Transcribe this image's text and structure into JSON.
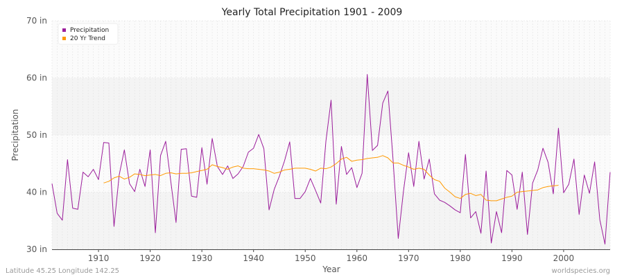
{
  "chart_data": {
    "type": "line",
    "title": "Yearly Total Precipitation 1901 - 2009",
    "xlabel": "Year",
    "ylabel": "Precipitation",
    "xlim": [
      1901,
      2009
    ],
    "ylim": [
      30,
      70
    ],
    "x_ticks": [
      {
        "value": 1910,
        "label": "1910"
      },
      {
        "value": 1920,
        "label": "1920"
      },
      {
        "value": 1930,
        "label": "1930"
      },
      {
        "value": 1940,
        "label": "1940"
      },
      {
        "value": 1950,
        "label": "1950"
      },
      {
        "value": 1960,
        "label": "1960"
      },
      {
        "value": 1970,
        "label": "1970"
      },
      {
        "value": 1980,
        "label": "1980"
      },
      {
        "value": 1990,
        "label": "1990"
      },
      {
        "value": 2000,
        "label": "2000"
      }
    ],
    "y_ticks": [
      {
        "value": 30,
        "label": "30 in"
      },
      {
        "value": 40,
        "label": "40 in"
      },
      {
        "value": 50,
        "label": "50 in"
      },
      {
        "value": 60,
        "label": "60 in"
      },
      {
        "value": 70,
        "label": "70 in"
      }
    ],
    "legend_position": "top-left",
    "grid": true,
    "series": [
      {
        "name": "Precipitation",
        "color": "#9b1d9b",
        "x": [
          1901,
          1902,
          1903,
          1904,
          1905,
          1906,
          1907,
          1908,
          1909,
          1910,
          1911,
          1912,
          1913,
          1914,
          1915,
          1916,
          1917,
          1918,
          1919,
          1920,
          1921,
          1922,
          1923,
          1924,
          1925,
          1926,
          1927,
          1928,
          1929,
          1930,
          1931,
          1932,
          1933,
          1934,
          1935,
          1936,
          1937,
          1938,
          1939,
          1940,
          1941,
          1942,
          1943,
          1944,
          1945,
          1946,
          1947,
          1948,
          1949,
          1950,
          1951,
          1952,
          1953,
          1954,
          1955,
          1956,
          1957,
          1958,
          1959,
          1960,
          1961,
          1962,
          1963,
          1964,
          1965,
          1966,
          1967,
          1968,
          1969,
          1970,
          1971,
          1972,
          1973,
          1974,
          1975,
          1976,
          1977,
          1978,
          1979,
          1980,
          1981,
          1982,
          1983,
          1984,
          1985,
          1986,
          1987,
          1988,
          1989,
          1990,
          1991,
          1992,
          1993,
          1994,
          1995,
          1996,
          1997,
          1998,
          1999,
          2000,
          2001,
          2002,
          2003,
          2004,
          2005,
          2006,
          2007,
          2008,
          2009
        ],
        "values": [
          41.5,
          36.3,
          35.1,
          45.7,
          37.2,
          37.0,
          43.5,
          42.7,
          44.0,
          42.2,
          48.7,
          48.6,
          34.0,
          43.0,
          47.4,
          41.5,
          40.1,
          44.0,
          41.0,
          47.4,
          32.9,
          46.4,
          48.9,
          41.8,
          34.7,
          47.5,
          47.6,
          39.3,
          39.1,
          47.8,
          41.4,
          49.4,
          44.5,
          43.1,
          44.6,
          42.4,
          43.2,
          44.5,
          47.0,
          47.7,
          50.1,
          47.6,
          36.9,
          40.5,
          42.8,
          45.5,
          48.8,
          38.9,
          38.9,
          40.1,
          42.4,
          40.3,
          38.1,
          48.9,
          56.1,
          37.9,
          48.0,
          43.1,
          44.3,
          40.8,
          43.3,
          60.6,
          47.3,
          48.2,
          55.6,
          57.7,
          45.6,
          31.9,
          40.1,
          46.9,
          41.0,
          48.9,
          42.3,
          45.8,
          39.7,
          38.6,
          38.2,
          37.6,
          36.9,
          36.4,
          46.6,
          35.5,
          36.6,
          32.8,
          43.7,
          31.1,
          36.6,
          32.9,
          43.8,
          43.0,
          37.0,
          43.5,
          32.6,
          41.6,
          43.9,
          47.7,
          45.2,
          39.7,
          51.2,
          39.9,
          41.4,
          45.8,
          36.1,
          43.0,
          39.8,
          45.3,
          35.2,
          30.9,
          43.5
        ]
      },
      {
        "name": "20 Yr Trend",
        "color": "#ff9900",
        "x": [
          1911,
          1912,
          1913,
          1914,
          1915,
          1916,
          1917,
          1918,
          1919,
          1920,
          1921,
          1922,
          1923,
          1924,
          1925,
          1926,
          1927,
          1928,
          1929,
          1930,
          1931,
          1932,
          1933,
          1934,
          1935,
          1936,
          1937,
          1938,
          1939,
          1940,
          1941,
          1942,
          1943,
          1944,
          1945,
          1946,
          1947,
          1948,
          1949,
          1950,
          1951,
          1952,
          1953,
          1954,
          1955,
          1956,
          1957,
          1958,
          1959,
          1960,
          1961,
          1962,
          1963,
          1964,
          1965,
          1966,
          1967,
          1968,
          1969,
          1970,
          1971,
          1972,
          1973,
          1974,
          1975,
          1976,
          1977,
          1978,
          1979,
          1980,
          1981,
          1982,
          1983,
          1984,
          1985,
          1986,
          1987,
          1988,
          1989,
          1990,
          1991,
          1992,
          1993,
          1994,
          1995,
          1996,
          1997,
          1998,
          1999
        ],
        "values": [
          41.6,
          41.9,
          42.5,
          42.8,
          42.3,
          42.6,
          43.2,
          43.1,
          42.9,
          43.0,
          43.1,
          42.9,
          43.3,
          43.4,
          43.2,
          43.3,
          43.3,
          43.4,
          43.6,
          43.8,
          44.0,
          44.8,
          44.5,
          44.3,
          44.0,
          44.4,
          44.6,
          44.2,
          44.1,
          44.1,
          44.0,
          43.9,
          43.7,
          43.3,
          43.5,
          43.9,
          44.0,
          44.2,
          44.2,
          44.2,
          44.0,
          43.7,
          44.2,
          44.1,
          44.4,
          45.0,
          45.8,
          46.1,
          45.4,
          45.6,
          45.7,
          45.9,
          46.0,
          46.1,
          46.4,
          46.0,
          45.1,
          45.1,
          44.7,
          44.4,
          44.0,
          44.2,
          44.0,
          43.0,
          42.2,
          41.9,
          40.7,
          40.0,
          39.2,
          38.9,
          39.6,
          39.8,
          39.4,
          39.6,
          38.6,
          38.5,
          38.5,
          38.8,
          39.1,
          39.3,
          40.0,
          40.1,
          40.2,
          40.3,
          40.4,
          40.8,
          41.0,
          41.1,
          41.2
        ]
      }
    ]
  },
  "footer": {
    "left": "Latitude 45.25 Longitude 142.25",
    "right": "worldspecies.org"
  }
}
